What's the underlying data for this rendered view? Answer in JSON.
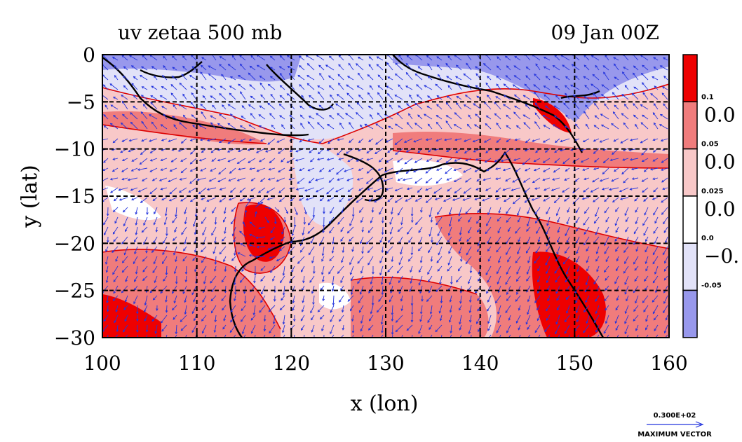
{
  "chart_data": {
    "type": "heatmap",
    "title": "uv zetaa 500 mb",
    "date_label": "09 Jan 00Z",
    "xlabel": "x (lon)",
    "ylabel": "y (lat)",
    "xlim": [
      100,
      160
    ],
    "ylim": [
      -30,
      0
    ],
    "x_ticks": [
      "100",
      "110",
      "120",
      "130",
      "140",
      "150",
      "160"
    ],
    "y_ticks": [
      "0",
      "−5",
      "−10",
      "−15",
      "−20",
      "−25",
      "−30"
    ],
    "grid": true,
    "colorbar": {
      "levels": [
        "0.1",
        "0.05",
        "0.025",
        "0.0",
        "-0.05"
      ],
      "level_values": [
        0.1,
        0.05,
        0.025,
        0.0,
        -0.05
      ],
      "side_labels": [
        "0.0",
        "0.0",
        "0.0",
        "−0."
      ],
      "colors": [
        "#ee0000",
        "#f07c7c",
        "#f8c8c8",
        "#ffffff",
        "#e2e2f8",
        "#9898ec"
      ]
    },
    "vector_key": {
      "value": "0.300E+02",
      "label": "MAXIMUM VECTOR"
    }
  },
  "colors": {
    "strong_positive": "#ee0000",
    "positive": "#f07c7c",
    "weak_positive": "#f8c8c8",
    "neutral": "#ffffff",
    "weak_negative": "#e2e2f8",
    "negative": "#9898ec",
    "vectors": "#2233dd",
    "coast": "#000000",
    "contour": "#dd0000"
  },
  "icons": [
    "vector-arrow-icon"
  ]
}
